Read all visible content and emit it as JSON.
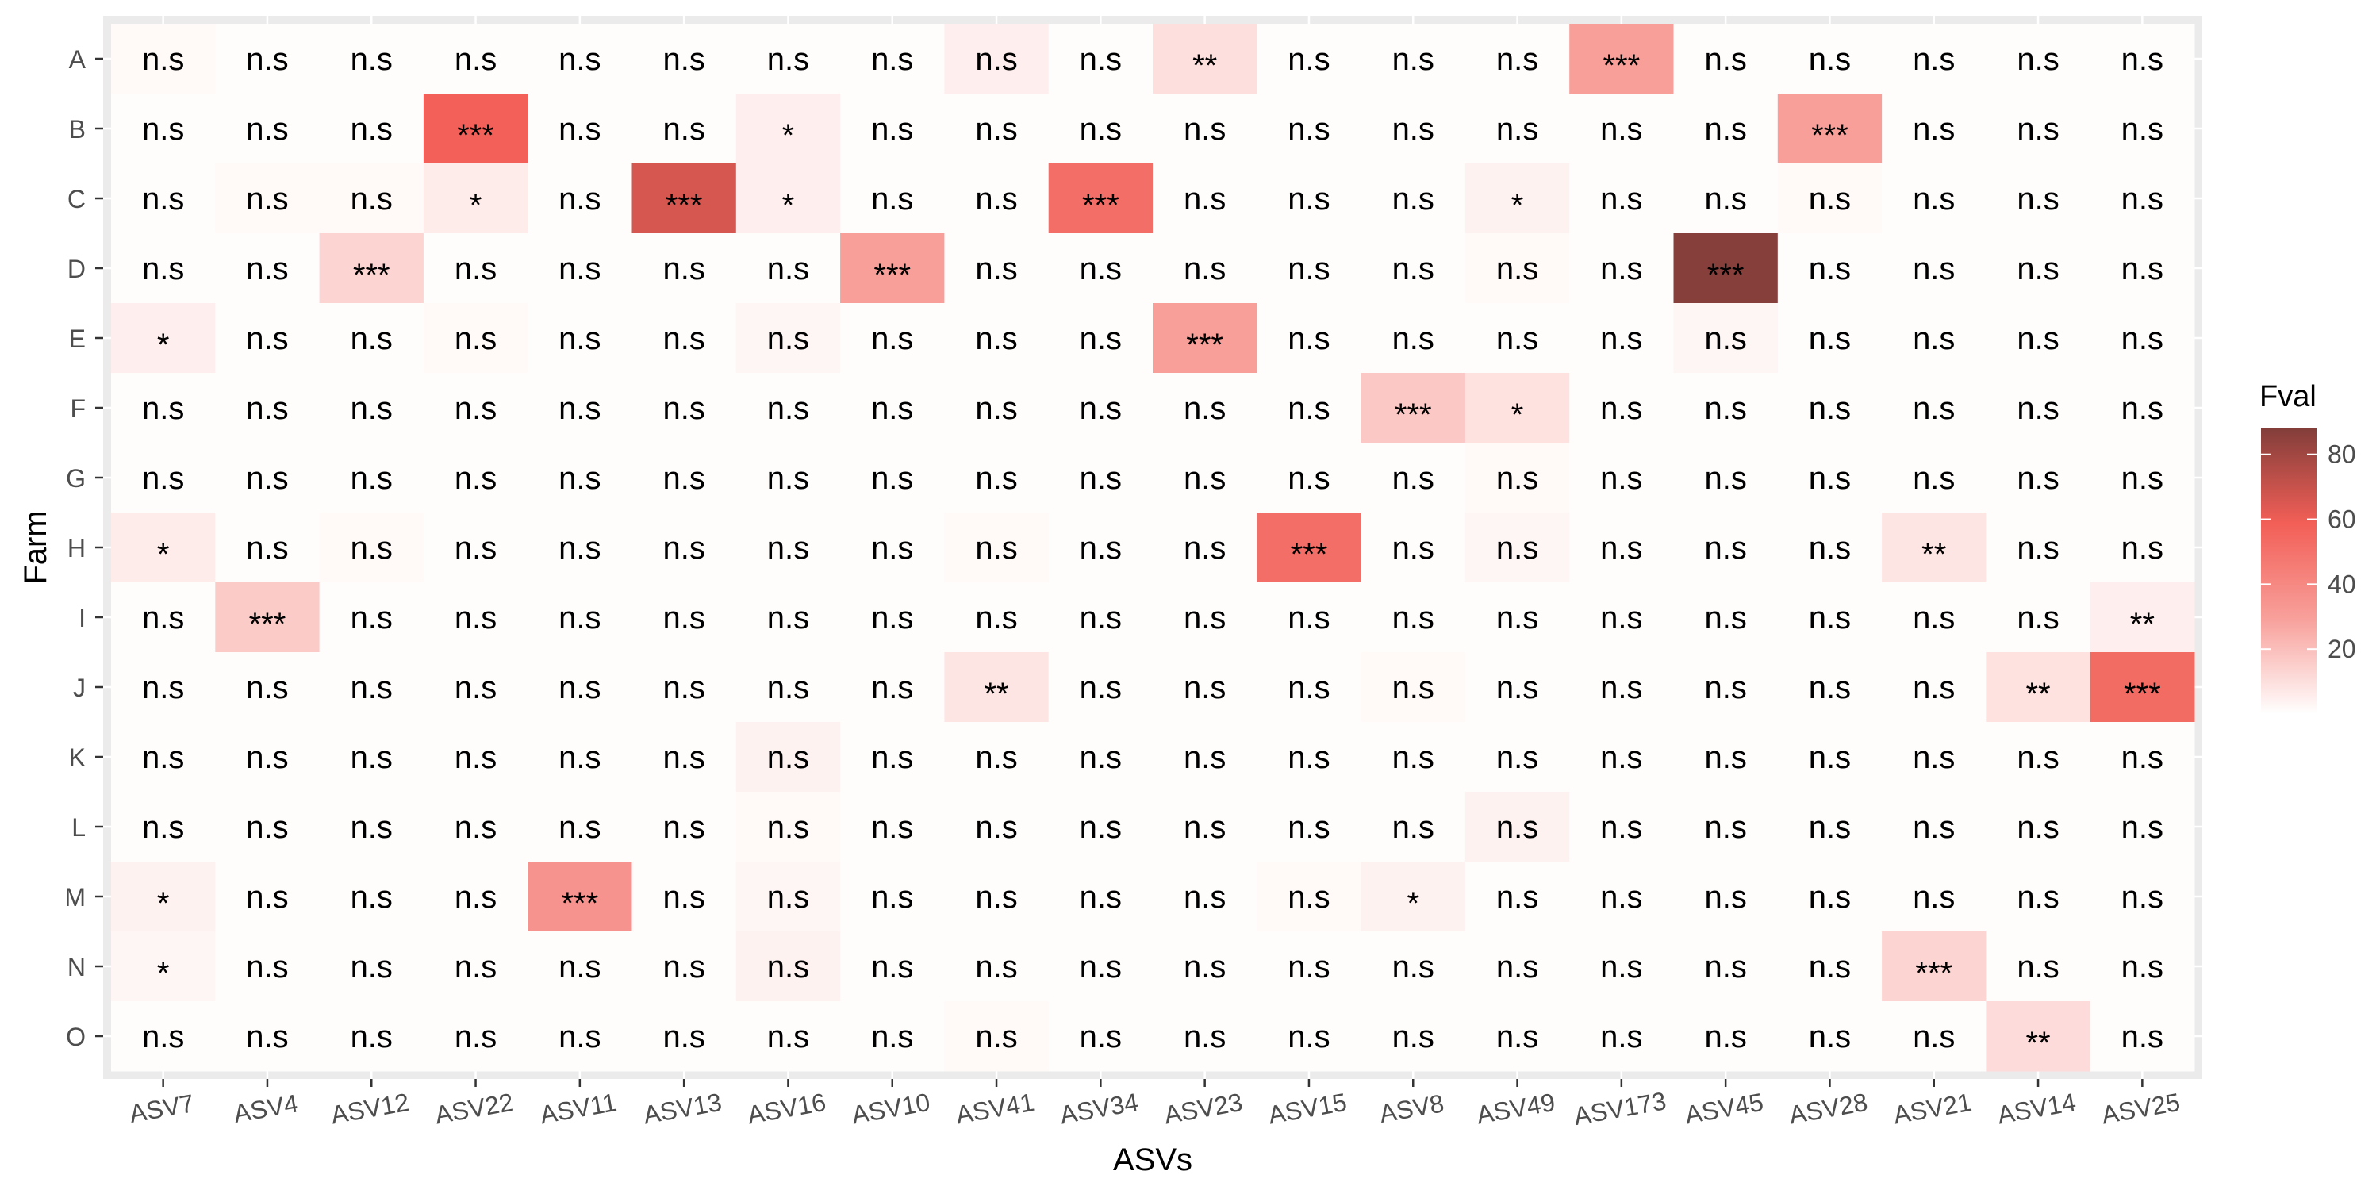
{
  "chart_data": {
    "type": "heatmap",
    "title": "",
    "xlabel": "ASVs",
    "ylabel": "Farm",
    "x_categories": [
      "ASV7",
      "ASV4",
      "ASV12",
      "ASV22",
      "ASV11",
      "ASV13",
      "ASV16",
      "ASV10",
      "ASV41",
      "ASV34",
      "ASV23",
      "ASV15",
      "ASV8",
      "ASV49",
      "ASV173",
      "ASV45",
      "ASV28",
      "ASV21",
      "ASV14",
      "ASV25"
    ],
    "y_categories": [
      "A",
      "B",
      "C",
      "D",
      "E",
      "F",
      "G",
      "H",
      "I",
      "J",
      "K",
      "L",
      "M",
      "N",
      "O"
    ],
    "legend": {
      "title": "Fval",
      "position": "right",
      "ticks": [
        20,
        40,
        60,
        80
      ],
      "range": [
        0,
        88
      ],
      "colors": [
        "#ffffff",
        "#f8a09b",
        "#f25f57",
        "#833e3a"
      ]
    },
    "panel_background": "#ebebeb",
    "grid": true,
    "fval": [
      [
        2,
        1,
        1,
        1,
        1,
        1,
        1,
        1,
        5,
        1,
        10,
        1,
        1,
        1,
        30,
        1,
        1,
        1,
        1,
        1
      ],
      [
        1,
        1,
        1,
        58,
        1,
        1,
        5,
        1,
        1,
        1,
        1,
        1,
        1,
        1,
        1,
        1,
        30,
        1,
        1,
        1
      ],
      [
        1,
        2,
        2,
        6,
        1,
        66,
        5,
        1,
        1,
        52,
        1,
        1,
        1,
        4,
        1,
        1,
        2,
        1,
        1,
        1
      ],
      [
        1,
        1,
        13,
        1,
        1,
        1,
        1,
        30,
        1,
        1,
        1,
        1,
        1,
        2,
        1,
        87,
        1,
        1,
        1,
        1
      ],
      [
        5,
        1,
        1,
        2,
        1,
        1,
        3,
        1,
        1,
        1,
        30,
        1,
        1,
        1,
        1,
        3,
        1,
        1,
        1,
        1
      ],
      [
        1,
        1,
        1,
        1,
        1,
        1,
        1,
        1,
        1,
        1,
        1,
        1,
        17,
        9,
        1,
        1,
        1,
        1,
        1,
        1
      ],
      [
        1,
        1,
        1,
        1,
        1,
        1,
        1,
        1,
        1,
        1,
        1,
        1,
        1,
        2,
        1,
        1,
        1,
        1,
        1,
        1
      ],
      [
        6,
        1,
        2,
        1,
        1,
        1,
        1,
        1,
        2,
        1,
        1,
        52,
        1,
        3,
        1,
        1,
        1,
        8,
        1,
        1
      ],
      [
        1,
        16,
        1,
        1,
        1,
        1,
        1,
        1,
        1,
        1,
        1,
        1,
        1,
        1,
        1,
        1,
        1,
        1,
        1,
        5
      ],
      [
        1,
        1,
        1,
        1,
        1,
        1,
        1,
        1,
        8,
        1,
        1,
        1,
        2,
        1,
        1,
        1,
        1,
        1,
        9,
        53
      ],
      [
        1,
        1,
        1,
        1,
        1,
        1,
        4,
        1,
        1,
        1,
        1,
        1,
        1,
        1,
        1,
        1,
        1,
        1,
        1,
        1
      ],
      [
        1,
        1,
        1,
        1,
        1,
        1,
        2,
        1,
        1,
        1,
        1,
        1,
        1,
        4,
        1,
        1,
        1,
        1,
        1,
        1
      ],
      [
        4,
        1,
        1,
        1,
        35,
        1,
        3,
        1,
        1,
        1,
        1,
        2,
        4,
        1,
        1,
        1,
        1,
        1,
        1,
        1
      ],
      [
        3,
        1,
        1,
        1,
        1,
        1,
        4,
        1,
        1,
        1,
        1,
        1,
        1,
        1,
        1,
        1,
        1,
        13,
        1,
        1
      ],
      [
        1,
        1,
        1,
        1,
        1,
        1,
        1,
        1,
        2,
        1,
        1,
        1,
        1,
        1,
        1,
        1,
        1,
        1,
        11,
        1
      ]
    ],
    "labels": [
      [
        "n.s",
        "n.s",
        "n.s",
        "n.s",
        "n.s",
        "n.s",
        "n.s",
        "n.s",
        "n.s",
        "n.s",
        "**",
        "n.s",
        "n.s",
        "n.s",
        "***",
        "n.s",
        "n.s",
        "n.s",
        "n.s",
        "n.s"
      ],
      [
        "n.s",
        "n.s",
        "n.s",
        "***",
        "n.s",
        "n.s",
        "*",
        "n.s",
        "n.s",
        "n.s",
        "n.s",
        "n.s",
        "n.s",
        "n.s",
        "n.s",
        "n.s",
        "***",
        "n.s",
        "n.s",
        "n.s"
      ],
      [
        "n.s",
        "n.s",
        "n.s",
        "*",
        "n.s",
        "***",
        "*",
        "n.s",
        "n.s",
        "***",
        "n.s",
        "n.s",
        "n.s",
        "*",
        "n.s",
        "n.s",
        "n.s",
        "n.s",
        "n.s",
        "n.s"
      ],
      [
        "n.s",
        "n.s",
        "***",
        "n.s",
        "n.s",
        "n.s",
        "n.s",
        "***",
        "n.s",
        "n.s",
        "n.s",
        "n.s",
        "n.s",
        "n.s",
        "n.s",
        "***",
        "n.s",
        "n.s",
        "n.s",
        "n.s"
      ],
      [
        "*",
        "n.s",
        "n.s",
        "n.s",
        "n.s",
        "n.s",
        "n.s",
        "n.s",
        "n.s",
        "n.s",
        "***",
        "n.s",
        "n.s",
        "n.s",
        "n.s",
        "n.s",
        "n.s",
        "n.s",
        "n.s",
        "n.s"
      ],
      [
        "n.s",
        "n.s",
        "n.s",
        "n.s",
        "n.s",
        "n.s",
        "n.s",
        "n.s",
        "n.s",
        "n.s",
        "n.s",
        "n.s",
        "***",
        "*",
        "n.s",
        "n.s",
        "n.s",
        "n.s",
        "n.s",
        "n.s"
      ],
      [
        "n.s",
        "n.s",
        "n.s",
        "n.s",
        "n.s",
        "n.s",
        "n.s",
        "n.s",
        "n.s",
        "n.s",
        "n.s",
        "n.s",
        "n.s",
        "n.s",
        "n.s",
        "n.s",
        "n.s",
        "n.s",
        "n.s",
        "n.s"
      ],
      [
        "*",
        "n.s",
        "n.s",
        "n.s",
        "n.s",
        "n.s",
        "n.s",
        "n.s",
        "n.s",
        "n.s",
        "n.s",
        "***",
        "n.s",
        "n.s",
        "n.s",
        "n.s",
        "n.s",
        "**",
        "n.s",
        "n.s"
      ],
      [
        "n.s",
        "***",
        "n.s",
        "n.s",
        "n.s",
        "n.s",
        "n.s",
        "n.s",
        "n.s",
        "n.s",
        "n.s",
        "n.s",
        "n.s",
        "n.s",
        "n.s",
        "n.s",
        "n.s",
        "n.s",
        "n.s",
        "**"
      ],
      [
        "n.s",
        "n.s",
        "n.s",
        "n.s",
        "n.s",
        "n.s",
        "n.s",
        "n.s",
        "**",
        "n.s",
        "n.s",
        "n.s",
        "n.s",
        "n.s",
        "n.s",
        "n.s",
        "n.s",
        "n.s",
        "**",
        "***"
      ],
      [
        "n.s",
        "n.s",
        "n.s",
        "n.s",
        "n.s",
        "n.s",
        "n.s",
        "n.s",
        "n.s",
        "n.s",
        "n.s",
        "n.s",
        "n.s",
        "n.s",
        "n.s",
        "n.s",
        "n.s",
        "n.s",
        "n.s",
        "n.s"
      ],
      [
        "n.s",
        "n.s",
        "n.s",
        "n.s",
        "n.s",
        "n.s",
        "n.s",
        "n.s",
        "n.s",
        "n.s",
        "n.s",
        "n.s",
        "n.s",
        "n.s",
        "n.s",
        "n.s",
        "n.s",
        "n.s",
        "n.s",
        "n.s"
      ],
      [
        "*",
        "n.s",
        "n.s",
        "n.s",
        "***",
        "n.s",
        "n.s",
        "n.s",
        "n.s",
        "n.s",
        "n.s",
        "n.s",
        "*",
        "n.s",
        "n.s",
        "n.s",
        "n.s",
        "n.s",
        "n.s",
        "n.s"
      ],
      [
        "*",
        "n.s",
        "n.s",
        "n.s",
        "n.s",
        "n.s",
        "n.s",
        "n.s",
        "n.s",
        "n.s",
        "n.s",
        "n.s",
        "n.s",
        "n.s",
        "n.s",
        "n.s",
        "n.s",
        "***",
        "n.s",
        "n.s"
      ],
      [
        "n.s",
        "n.s",
        "n.s",
        "n.s",
        "n.s",
        "n.s",
        "n.s",
        "n.s",
        "n.s",
        "n.s",
        "n.s",
        "n.s",
        "n.s",
        "n.s",
        "n.s",
        "n.s",
        "n.s",
        "n.s",
        "**",
        "n.s"
      ]
    ]
  }
}
